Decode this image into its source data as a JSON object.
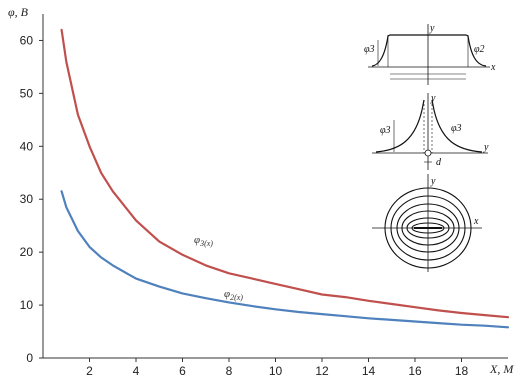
{
  "chart_data": {
    "type": "line",
    "xlabel": "X, M",
    "ylabel": "φ, B",
    "xlim": [
      0,
      20
    ],
    "ylim": [
      0,
      65
    ],
    "xticks": [
      2,
      4,
      6,
      8,
      10,
      12,
      14,
      16,
      18
    ],
    "yticks": [
      0,
      10,
      20,
      30,
      40,
      50,
      60
    ],
    "grid": false,
    "series": [
      {
        "name": "φ_3(x)",
        "color": "#c0504d",
        "x": [
          0.8,
          1,
          1.5,
          2,
          2.5,
          3,
          4,
          5,
          6,
          7,
          8,
          9,
          10,
          11,
          12,
          13,
          14,
          15,
          16,
          17,
          18,
          19,
          20
        ],
        "y": [
          62,
          56,
          46,
          40,
          35,
          31.5,
          26,
          22,
          19.5,
          17.5,
          16,
          15,
          14,
          13,
          12,
          11.5,
          10.8,
          10.2,
          9.6,
          9,
          8.5,
          8.1,
          7.7
        ]
      },
      {
        "name": "φ_2(x)",
        "color": "#4f81bd",
        "x": [
          0.8,
          1,
          1.5,
          2,
          2.5,
          3,
          4,
          5,
          6,
          7,
          8,
          9,
          10,
          11,
          12,
          13,
          14,
          15,
          16,
          17,
          18,
          19,
          20
        ],
        "y": [
          31.5,
          28.5,
          24,
          21,
          19,
          17.5,
          15,
          13.5,
          12.2,
          11.3,
          10.5,
          9.8,
          9.2,
          8.7,
          8.3,
          7.9,
          7.5,
          7.2,
          6.9,
          6.6,
          6.3,
          6.1,
          5.8
        ]
      }
    ],
    "series_labels": [
      {
        "text": "φ",
        "sub": "3(x)",
        "x": 7.2,
        "y": 22.5
      },
      {
        "text": "φ",
        "sub": "2(x)",
        "x": 7.8,
        "y": 12.5
      }
    ],
    "inset_labels": {
      "top_y": "y",
      "top_phi_left": "φ3",
      "top_phi_right": "φ2",
      "top_x": "x",
      "mid_y": "y",
      "mid_phi_left": "φ3",
      "mid_phi_right": "φ3",
      "mid_axis": "y",
      "mid_d": "d",
      "bot_y": "y",
      "bot_x": "x"
    }
  }
}
